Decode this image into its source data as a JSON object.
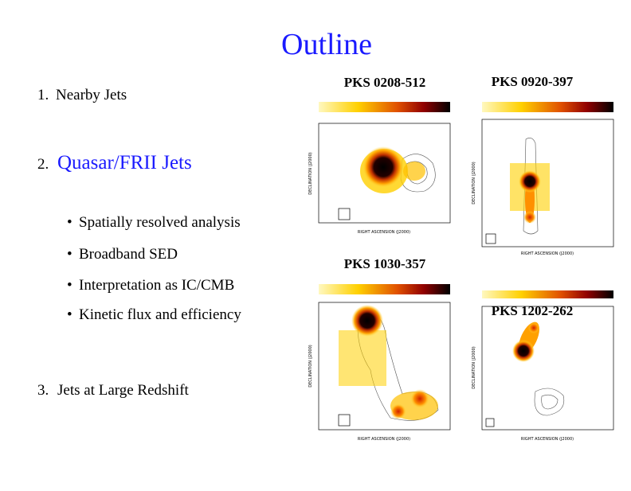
{
  "header": {
    "title": "Outline"
  },
  "outline": {
    "items": [
      {
        "number": "1.",
        "text": "Nearby Jets"
      },
      {
        "number": "2.",
        "text": "Quasar/FRII Jets",
        "bullets": [
          "Spatially resolved analysis",
          "Broadband SED",
          "Interpretation as IC/CMB",
          "Kinetic flux and efficiency"
        ]
      },
      {
        "number": "3.",
        "text": "Jets at Large Redshift"
      }
    ]
  },
  "panels": [
    {
      "label": "PKS 0208-512",
      "xlabel": "RIGHT ASCENSION (J2000)",
      "ylabel": "DECLINATION (J2000)"
    },
    {
      "label": "PKS 0920-397",
      "xlabel": "RIGHT ASCENSION (J2000)",
      "ylabel": "DECLINATION (J2000)"
    },
    {
      "label": "PKS 1030-357",
      "xlabel": "RIGHT ASCENSION (J2000)",
      "ylabel": "DECLINATION (J2000)"
    },
    {
      "label": "PKS 1202-262",
      "xlabel": "RIGHT ASCENSION (J2000)",
      "ylabel": "DECLINATION (J2000)"
    }
  ]
}
